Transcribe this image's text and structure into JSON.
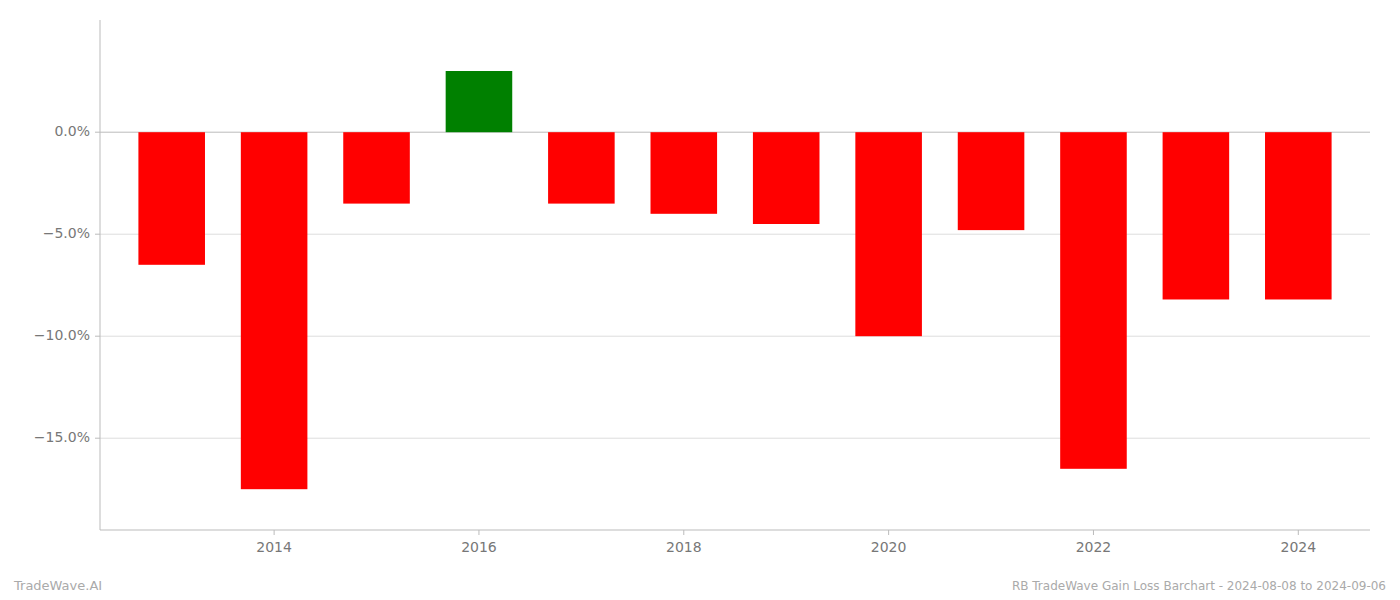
{
  "chart_data": {
    "type": "bar",
    "title": "RB TradeWave Gain Loss Barchart - 2024-08-08 to 2024-09-06",
    "annotations": [
      "TradeWave.AI"
    ],
    "x": [
      2013,
      2014,
      2015,
      2016,
      2017,
      2018,
      2019,
      2020,
      2021,
      2022,
      2023,
      2024
    ],
    "values": [
      -6.5,
      -17.5,
      -3.5,
      3.0,
      -3.5,
      -4.0,
      -4.5,
      -10.0,
      -4.8,
      -16.5,
      -8.2,
      -8.2
    ],
    "colors": [
      "#ff0000",
      "#ff0000",
      "#ff0000",
      "#008000",
      "#ff0000",
      "#ff0000",
      "#ff0000",
      "#ff0000",
      "#ff0000",
      "#ff0000",
      "#ff0000",
      "#ff0000"
    ],
    "xlim": [
      2012.3,
      2024.7
    ],
    "xticks": [
      2014,
      2016,
      2018,
      2020,
      2022,
      2024
    ],
    "ylim": [
      -19.5,
      5.5
    ],
    "yticks": [
      {
        "value": 0.0,
        "label": "0.0%"
      },
      {
        "value": -5.0,
        "label": "−5.0%"
      },
      {
        "value": -10.0,
        "label": "−10.0%"
      },
      {
        "value": -15.0,
        "label": "−15.0%"
      }
    ],
    "grid": true
  }
}
